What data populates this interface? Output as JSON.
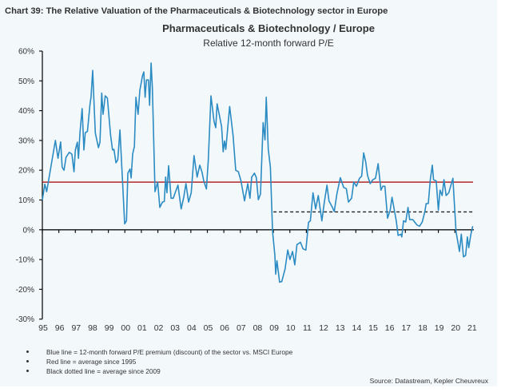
{
  "chart_data": {
    "type": "line",
    "caption": "Chart 39: The Relative Valuation of the Pharmaceuticals & Biotechnology sector in Europe",
    "title": "Pharmaceuticals & Biotechnology / Europe",
    "subtitle": "Relative 12-month forward P/E",
    "xlabel": "",
    "ylabel": "",
    "xlim": [
      1995,
      2021.2
    ],
    "ylim": [
      -30,
      60
    ],
    "yticks": [
      60,
      50,
      40,
      30,
      20,
      10,
      0,
      -10,
      -20,
      -30
    ],
    "ytick_labels": [
      "60%",
      "50%",
      "40%",
      "30%",
      "20%",
      "10%",
      "0%",
      "-10%",
      "-20%",
      "-30%"
    ],
    "xtick_labels": [
      "95",
      "96",
      "97",
      "98",
      "99",
      "00",
      "01",
      "02",
      "03",
      "04",
      "05",
      "06",
      "07",
      "08",
      "09",
      "10",
      "11",
      "12",
      "13",
      "14",
      "15",
      "16",
      "17",
      "18",
      "19",
      "20",
      "21"
    ],
    "grid": false,
    "colors": {
      "series": "#2b8bc3",
      "red_line": "#b2282b",
      "dotted_line": "#222222",
      "axis": "#111111"
    },
    "series": [
      {
        "name": "12-month forward P/E premium (discount) vs. MSCI Europe",
        "x": [
          1995.0,
          1995.15,
          1995.26,
          1995.42,
          1995.79,
          1995.95,
          1996.11,
          1996.2,
          1996.31,
          1996.44,
          1996.63,
          1996.79,
          1996.92,
          1997.0,
          1997.12,
          1997.19,
          1997.28,
          1997.41,
          1997.52,
          1997.6,
          1997.73,
          1997.89,
          1997.95,
          1998.05,
          1998.13,
          1998.21,
          1998.4,
          1998.49,
          1998.6,
          1998.68,
          1998.81,
          1998.94,
          1999.13,
          1999.25,
          1999.34,
          1999.46,
          1999.57,
          1999.7,
          1999.86,
          1999.99,
          2000.1,
          2000.18,
          2000.31,
          2000.38,
          2000.47,
          2000.58,
          2000.67,
          2000.8,
          2000.91,
          2001.07,
          2001.15,
          2001.23,
          2001.31,
          2001.43,
          2001.5,
          2001.59,
          2001.67,
          2001.83,
          2001.99,
          2002.12,
          2002.28,
          2002.39,
          2002.47,
          2002.55,
          2002.65,
          2002.8,
          2002.93,
          2003.05,
          2003.22,
          2003.41,
          2003.57,
          2003.7,
          2003.86,
          2004.02,
          2004.19,
          2004.38,
          2004.54,
          2004.67,
          2004.78,
          2004.94,
          2005.06,
          2005.22,
          2005.4,
          2005.51,
          2005.59,
          2005.86,
          2005.96,
          2006.04,
          2006.12,
          2006.35,
          2006.56,
          2006.72,
          2006.88,
          2007.04,
          2007.25,
          2007.45,
          2007.58,
          2007.69,
          2007.85,
          2007.97,
          2008.09,
          2008.22,
          2008.38,
          2008.49,
          2008.57,
          2008.69,
          2008.82,
          2008.95,
          2009.09,
          2009.14,
          2009.22,
          2009.38,
          2009.51,
          2009.71,
          2009.87,
          2010.0,
          2010.16,
          2010.3,
          2010.43,
          2010.64,
          2010.8,
          2010.97,
          2011.13,
          2011.24,
          2011.4,
          2011.56,
          2011.72,
          2011.94,
          2012.09,
          2012.25,
          2012.37,
          2012.58,
          2012.69,
          2012.85,
          2013.06,
          2013.26,
          2013.42,
          2013.55,
          2013.74,
          2013.87,
          2014.03,
          2014.22,
          2014.35,
          2014.47,
          2014.6,
          2014.71,
          2014.87,
          2015.03,
          2015.19,
          2015.35,
          2015.52,
          2015.63,
          2015.76,
          2015.92,
          2016.08,
          2016.19,
          2016.36,
          2016.45,
          2016.56,
          2016.73,
          2016.78,
          2016.89,
          2017.02,
          2017.16,
          2017.26,
          2017.45,
          2017.7,
          2017.86,
          2018.02,
          2018.18,
          2018.26,
          2018.39,
          2018.51,
          2018.63,
          2018.71,
          2018.87,
          2019.0,
          2019.1,
          2019.23,
          2019.34,
          2019.47,
          2019.63,
          2019.88,
          2020.0,
          2020.07,
          2020.28,
          2020.39,
          2020.52,
          2020.65,
          2020.76,
          2020.84,
          2020.97,
          2021.08
        ],
        "values": [
          10,
          15.3,
          12.8,
          18,
          30,
          24,
          29.5,
          21,
          20,
          24.4,
          26,
          25.4,
          19.5,
          26.8,
          29.4,
          24,
          32.6,
          40.7,
          26.8,
          32.6,
          33,
          42.3,
          44.5,
          53.5,
          43,
          32.5,
          27.6,
          29.4,
          45.9,
          38.8,
          45,
          44.2,
          32,
          26.8,
          27,
          22.5,
          23.5,
          33.5,
          16,
          2,
          3,
          19,
          20.4,
          17.4,
          25.4,
          28,
          44.5,
          38.8,
          46.8,
          51.7,
          53,
          44.5,
          50.3,
          50.3,
          41.8,
          56,
          47.6,
          12.8,
          16,
          7.5,
          9.3,
          9.5,
          17.7,
          12.4,
          21.5,
          10.6,
          10.6,
          12.4,
          15,
          7,
          11,
          15.5,
          9.3,
          12.4,
          24.9,
          17.7,
          21.7,
          19.5,
          16.4,
          13.7,
          23.5,
          45,
          36.5,
          34.3,
          42.3,
          34.7,
          26.2,
          29.8,
          27,
          41.4,
          31.6,
          20,
          19.5,
          16.4,
          9.7,
          15.5,
          10.6,
          17.7,
          19,
          17.5,
          10.1,
          12,
          36,
          30.2,
          44.5,
          27.1,
          20.9,
          -0.6,
          -8.6,
          -14.9,
          -10.4,
          -17.6,
          -17.4,
          -13.1,
          -6.8,
          -10,
          -7.3,
          -11.8,
          -5,
          -4.2,
          -6.4,
          -6.8,
          2.5,
          3,
          12.4,
          7,
          11.5,
          3,
          9.3,
          15,
          9.7,
          7.5,
          6.1,
          12,
          17.5,
          14.2,
          13.8,
          9.3,
          10.6,
          16,
          14.6,
          17.3,
          18,
          25.8,
          22.7,
          18.2,
          15.5,
          16.8,
          17.3,
          22.2,
          13.3,
          14.6,
          14.6,
          3.9,
          6.6,
          10.9,
          5.7,
          3,
          -1.9,
          -1.5,
          -2.4,
          3,
          2.6,
          7.5,
          3.4,
          3.4,
          1.6,
          1.2,
          2.6,
          6.1,
          8.8,
          8.8,
          16.8,
          21.7,
          16.8,
          16.4,
          6.6,
          13.3,
          11.5,
          16.8,
          11.5,
          12.4,
          17.3,
          5.7,
          -0.6,
          -7.3,
          -1.5,
          -9.1,
          -8.6,
          -2.4,
          -6,
          -1.5,
          1.2
        ]
      }
    ],
    "reference_lines": [
      {
        "name": "Average since 1995",
        "value": 16,
        "from": 1995,
        "to": 2021.1,
        "style": "solid red"
      },
      {
        "name": "Average since 2009",
        "value": 6,
        "from": 2009,
        "to": 2021.1,
        "style": "dashed black"
      }
    ],
    "notes": [
      "Blue line = 12-month forward P/E premium (discount) of the sector vs. MSCI Europe",
      "Red line = average since 1995",
      "Black dotted line = average since 2009"
    ],
    "source": "Source: Datastream, Kepler Cheuvreux"
  }
}
